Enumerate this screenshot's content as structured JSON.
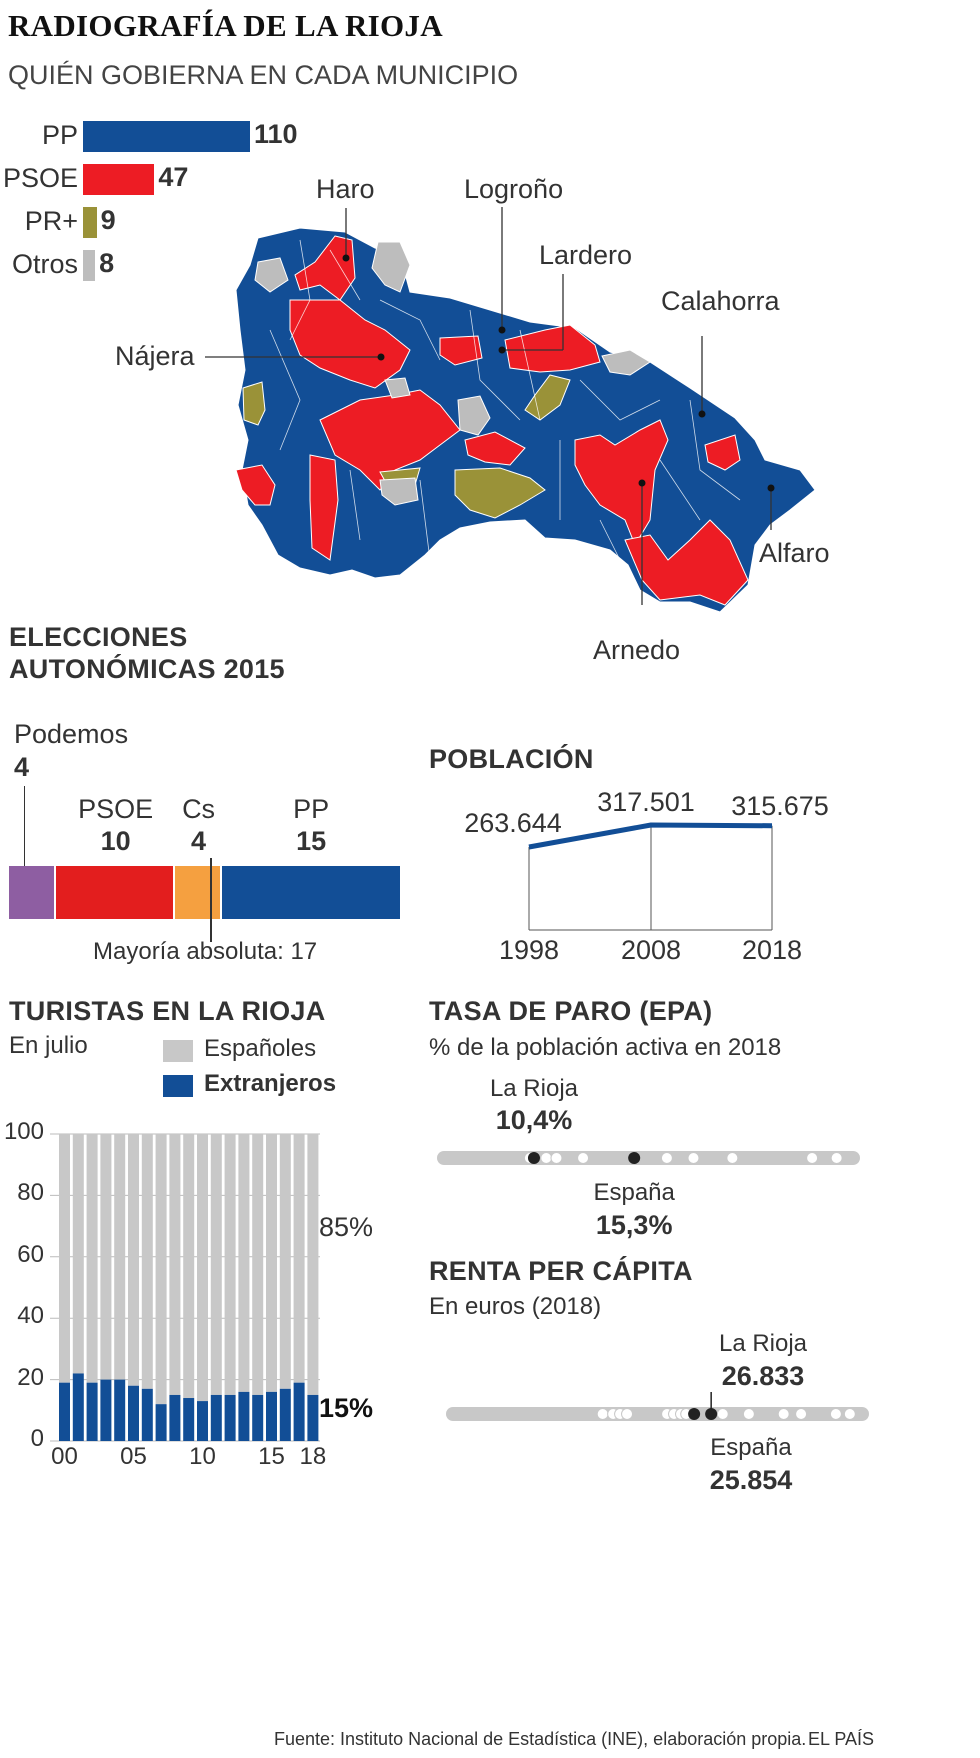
{
  "title": "RADIOGRAFÍA DE LA RIOJA",
  "subtitle": "QUIÉN GOBIERNA EN CADA MUNICIPIO",
  "colors": {
    "pp": "#124e96",
    "psoe": "#ed1c24",
    "prplus": "#9a9238",
    "otros": "#bdbdbd",
    "podemos": "#8e5ea2",
    "cs": "#f5a040",
    "psoe_dark": "#e31e1e",
    "gray_bar": "#c8c8c8"
  },
  "municipios_chart": {
    "type": "bar",
    "categories": [
      "PP",
      "PSOE",
      "PR+",
      "Otros"
    ],
    "values": [
      110,
      47,
      9,
      8
    ],
    "labels": [
      "110",
      "47",
      "9",
      "8"
    ]
  },
  "map": {
    "places": [
      "Haro",
      "Logroño",
      "Lardero",
      "Calahorra",
      "Nájera",
      "Alfaro",
      "Arnedo"
    ]
  },
  "elecciones": {
    "title_line1": "ELECCIONES",
    "title_line2": "AUTONÓMICAS 2015",
    "chart_data": {
      "type": "bar",
      "categories": [
        "Podemos",
        "PSOE",
        "Cs",
        "PP"
      ],
      "values": [
        4,
        10,
        4,
        15
      ],
      "value_labels": [
        "4",
        "10",
        "4",
        "15"
      ]
    },
    "mayoria_label": "Mayoría absoluta: 17"
  },
  "poblacion": {
    "title": "POBLACIÓN",
    "chart_data": {
      "type": "line",
      "x": [
        "1998",
        "2008",
        "2018"
      ],
      "values": [
        263644,
        317501,
        315675
      ],
      "value_labels": [
        "263.644",
        "317.501",
        "315.675"
      ]
    }
  },
  "turistas": {
    "title": "TURISTAS EN LA RIOJA",
    "note": "En julio",
    "legend": {
      "espanoles": "Españoles",
      "extranjeros": "Extranjeros"
    },
    "pct_espanoles": "85%",
    "pct_extranjeros": "15%",
    "chart_data": {
      "type": "bar",
      "stacked": true,
      "x": [
        "2000",
        "2001",
        "2002",
        "2003",
        "2004",
        "2005",
        "2006",
        "2007",
        "2008",
        "2009",
        "2010",
        "2011",
        "2012",
        "2013",
        "2014",
        "2015",
        "2016",
        "2017",
        "2018"
      ],
      "series": [
        {
          "name": "Extranjeros",
          "values": [
            19,
            22,
            19,
            20,
            20,
            18,
            17,
            12,
            15,
            14,
            13,
            15,
            15,
            16,
            15,
            16,
            17,
            19,
            15
          ]
        },
        {
          "name": "Españoles",
          "values": [
            81,
            78,
            81,
            80,
            80,
            82,
            83,
            88,
            85,
            86,
            87,
            85,
            85,
            84,
            85,
            84,
            83,
            81,
            85
          ]
        }
      ],
      "ylim": [
        0,
        100
      ],
      "yticks": [
        "100",
        "80",
        "60",
        "40",
        "20",
        "0"
      ],
      "xticks": [
        "00",
        "05",
        "10",
        "15",
        "18"
      ]
    }
  },
  "paro": {
    "title": "TASA DE PARO (EPA)",
    "note": "% de la población activa en 2018",
    "rioja_label": "La Rioja",
    "rioja_value": "10,4%",
    "espana_label": "España",
    "espana_value": "15,3%",
    "chart_data": {
      "type": "scatter",
      "highlight": {
        "La Rioja": 10.4,
        "España": 15.3
      },
      "xlim": [
        6,
        26
      ],
      "regions": [
        10.2,
        10.4,
        11.0,
        11.5,
        12.8,
        15.3,
        16.9,
        18.2,
        20.1,
        24.0,
        25.2
      ]
    }
  },
  "renta": {
    "title": "RENTA PER CÁPITA",
    "note": "En euros (2018)",
    "rioja_label": "La Rioja",
    "rioja_value": "26.833",
    "espana_label": "España",
    "espana_value": "25.854",
    "chart_data": {
      "type": "scatter",
      "highlight": {
        "La Rioja": 26833,
        "España": 25854
      },
      "xlim": [
        12000,
        35500
      ],
      "regions": [
        20600,
        21200,
        21600,
        22000,
        24300,
        24700,
        25100,
        25400,
        27500,
        29000,
        31000,
        32000,
        34000,
        34800
      ]
    }
  },
  "footer": {
    "source": "Fuente: Instituto Nacional de Estadística (INE), elaboración propia.",
    "brand": "EL PAÍS"
  }
}
